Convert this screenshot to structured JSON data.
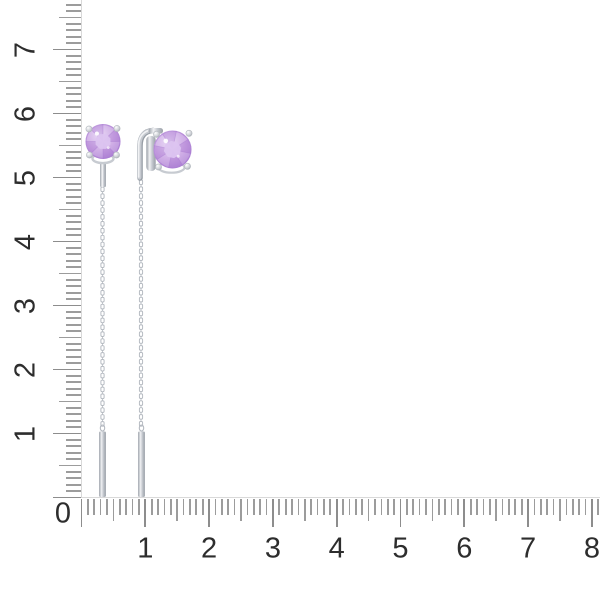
{
  "photo": {
    "subject": "amethyst-threader-earrings",
    "background": "#ffffff"
  },
  "rulers": {
    "origin_label": "0",
    "vertical": {
      "labels": [
        "1",
        "2",
        "3",
        "4",
        "5",
        "6",
        "7"
      ]
    },
    "horizontal": {
      "labels": [
        "1",
        "2",
        "3",
        "4",
        "5",
        "6",
        "7",
        "8"
      ]
    }
  },
  "colors": {
    "background": "#ffffff",
    "tick": "#9c9c9c",
    "tick_major": "#8d8d8d",
    "baseline": "#d9d9d9",
    "label": "#2d2d2d",
    "stone": "#c9a2e2",
    "stone_highlight": "#e9d9f6",
    "stone_shadow": "#a87bd1",
    "stone_table": "#dcc4f0",
    "chain": "#b4b9c0",
    "metal": "#c7cbd1",
    "metal_highlight": "#f1f2f4",
    "metal_shadow": "#989ea6"
  }
}
